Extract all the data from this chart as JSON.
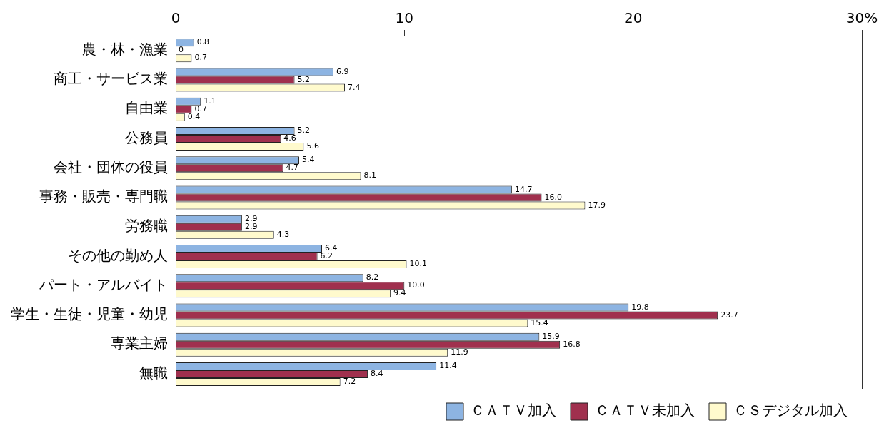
{
  "chart_data": {
    "type": "bar",
    "orientation": "horizontal",
    "categories": [
      "農・林・漁業",
      "商工・サービス業",
      "自由業",
      "公務員",
      "会社・団体の役員",
      "事務・販売・専門職",
      "労務職",
      "その他の勤め人",
      "パート・アルバイト",
      "学生・生徒・児童・幼児",
      "専業主婦",
      "無職"
    ],
    "series": [
      {
        "name": "ＣＡＴＶ加入",
        "color": "#8db4e2",
        "values": [
          0.8,
          6.9,
          1.1,
          5.2,
          5.4,
          14.7,
          2.9,
          6.4,
          8.2,
          19.8,
          15.9,
          11.4
        ],
        "value_labels": [
          "0.8",
          "6.9",
          "1.1",
          "5.2",
          "5.4",
          "14.7",
          "2.9",
          "6.4",
          "8.2",
          "19.8",
          "15.9",
          "11.4"
        ]
      },
      {
        "name": "ＣＡＴＶ未加入",
        "color": "#a0304e",
        "values": [
          0,
          5.2,
          0.7,
          4.6,
          4.7,
          16.0,
          2.9,
          6.2,
          10.0,
          23.7,
          16.8,
          8.4
        ],
        "value_labels": [
          "0",
          "5.2",
          "0.7",
          "4.6",
          "4.7",
          "16.0",
          "2.9",
          "6.2",
          "10.0",
          "23.7",
          "16.8",
          "8.4"
        ]
      },
      {
        "name": "ＣＳデジタル加入",
        "color": "#fffacd",
        "values": [
          0.7,
          7.4,
          0.4,
          5.6,
          8.1,
          17.9,
          4.3,
          10.1,
          9.4,
          15.4,
          11.9,
          7.2
        ],
        "value_labels": [
          "0.7",
          "7.4",
          "0.4",
          "5.6",
          "8.1",
          "17.9",
          "4.3",
          "10.1",
          "9.4",
          "15.4",
          "11.9",
          "7.2"
        ]
      }
    ],
    "xlim": [
      0,
      30
    ],
    "xticks": [
      0,
      10,
      20,
      {
        "value": 30,
        "label": "30%"
      }
    ],
    "legend": "bottom right"
  }
}
